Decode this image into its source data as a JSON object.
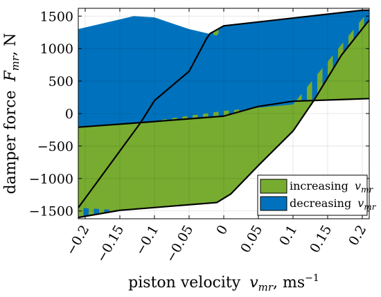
{
  "chart_data": {
    "type": "area",
    "xlabel": "piston velocity",
    "xlabel_symbol": "v",
    "xlabel_subscript": "mr",
    "xlabel_units": ", ms",
    "xlabel_units_sup": "−1",
    "ylabel": "damper force",
    "ylabel_symbol": "F",
    "ylabel_subscript": "mr",
    "ylabel_units": ", N",
    "xlim": [
      -0.21,
      0.21
    ],
    "ylim": [
      -1620,
      1620
    ],
    "x_ticks": [
      -0.2,
      -0.15,
      -0.1,
      -0.05,
      0,
      0.05,
      0.1,
      0.15,
      0.2
    ],
    "x_tick_labels": [
      "−0.2",
      "−0.15",
      "−0.1",
      "−0.05",
      "0",
      "0.05",
      "0.1",
      "0.15",
      "0.2"
    ],
    "y_ticks": [
      -1500,
      -1000,
      -500,
      0,
      500,
      1000,
      1500
    ],
    "y_tick_labels": [
      "−1500",
      "−1000",
      "−500",
      "0",
      "500",
      "1000",
      "1500"
    ],
    "grid": true,
    "legend_position": "bottom-right",
    "series": [
      {
        "name": "increasing",
        "symbol": "v",
        "subscript": "mr",
        "color": "#77ac30",
        "x": [
          -0.21,
          -0.12,
          0.0,
          0.05,
          0.1,
          0.21,
          0.21,
          0.17,
          0.13,
          0.1,
          0.05,
          0.01,
          -0.01,
          -0.15,
          -0.21
        ],
        "y": [
          -210,
          -140,
          -40,
          110,
          190,
          230,
          1440,
          900,
          200,
          -270,
          -800,
          -1240,
          -1370,
          -1490,
          -1450
        ]
      },
      {
        "name": "decreasing",
        "symbol": "v",
        "subscript": "mr",
        "color": "#0072bd",
        "x": [
          -0.21,
          -0.15,
          -0.13,
          -0.1,
          -0.05,
          -0.01,
          0.0,
          0.2,
          0.21,
          0.1,
          0.05,
          0.0,
          -0.12,
          -0.21
        ],
        "y": [
          1300,
          1450,
          1500,
          1480,
          1300,
          1200,
          1350,
          1590,
          1590,
          140,
          90,
          40,
          -140,
          -200
        ]
      }
    ],
    "stripes": {
      "x_start": -0.21,
      "x_end": 0.21,
      "width": 0.0075,
      "colors": [
        "#77ac30",
        "#0072bd"
      ]
    },
    "loop_outline": {
      "upper_x": [
        -0.21,
        -0.12,
        -0.1,
        -0.05,
        -0.025,
        -0.02,
        0.0,
        0.2,
        0.21
      ],
      "upper_y": [
        -1450,
        -140,
        200,
        650,
        1150,
        1230,
        1350,
        1590,
        1590
      ],
      "lower_x": [
        -0.21,
        -0.15,
        -0.01,
        0.01,
        0.05,
        0.1,
        0.13,
        0.17,
        0.21
      ],
      "lower_y": [
        -1600,
        -1490,
        -1370,
        -1240,
        -800,
        -270,
        200,
        900,
        1440
      ],
      "mid_x": [
        -0.21,
        -0.12,
        0.0,
        0.05,
        0.1,
        0.21
      ],
      "mid_y": [
        -210,
        -140,
        -40,
        110,
        190,
        230
      ]
    }
  }
}
